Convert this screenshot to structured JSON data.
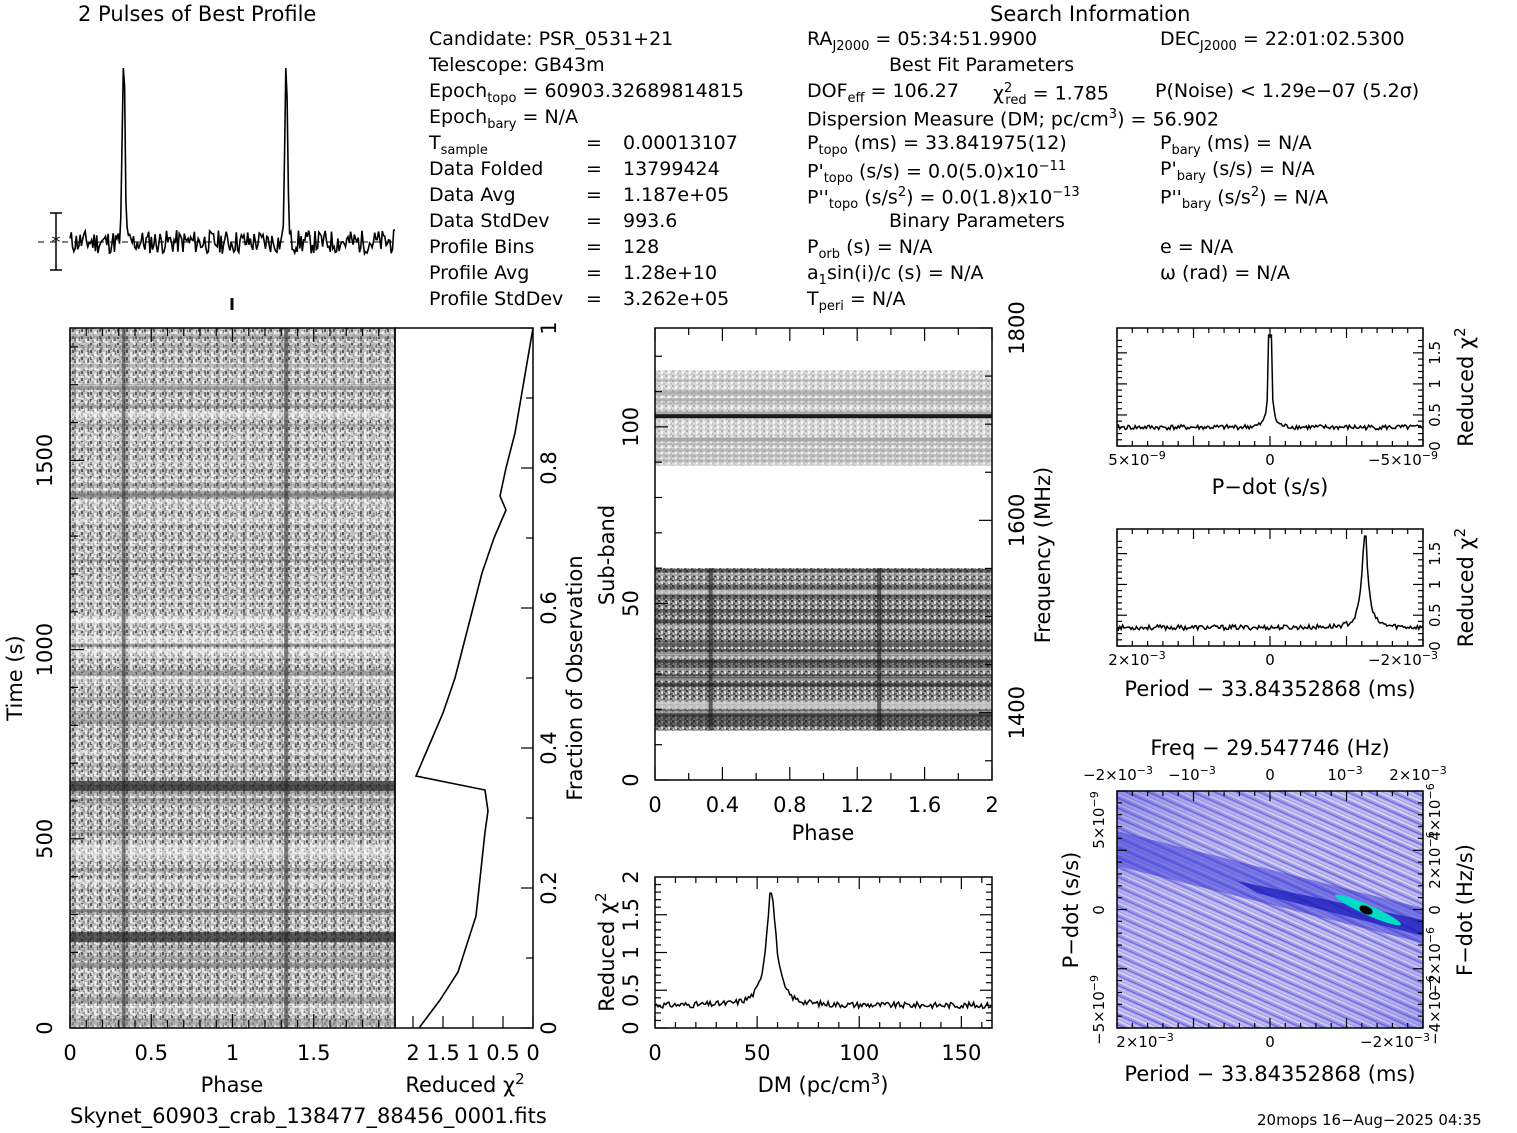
{
  "profile_title": "2 Pulses of Best Profile",
  "search_title": "Search Information",
  "info": {
    "candidate": "Candidate:  PSR_0531+21",
    "telescope": "Telescope:  GB43m",
    "epoch_topo": "Epoch",
    "epoch_topo_sub": "topo",
    "epoch_topo_val": " = 60903.32689814815",
    "epoch_bary": "Epoch",
    "epoch_bary_sub": "bary",
    "epoch_bary_val": " = N/A",
    "rows": [
      {
        "label": "T",
        "sub": "sample",
        "value": "0.00013107"
      },
      {
        "label": "Data Folded",
        "sub": "",
        "value": "13799424"
      },
      {
        "label": "Data Avg",
        "sub": "",
        "value": "1.187e+05"
      },
      {
        "label": "Data StdDev",
        "sub": "",
        "value": "993.6"
      },
      {
        "label": "Profile Bins",
        "sub": "",
        "value": "128"
      },
      {
        "label": "Profile Avg",
        "sub": "",
        "value": "1.28e+10"
      },
      {
        "label": "Profile StdDev",
        "sub": "",
        "value": "3.262e+05"
      }
    ],
    "eq": "=",
    "ra": "RA",
    "ra_sub": "J2000",
    "ra_val": " = 05:34:51.9900",
    "dec": "DEC",
    "dec_sub": "J2000",
    "dec_val": " = 22:01:02.5300",
    "best_fit_title": "Best Fit Parameters",
    "dof": "DOF",
    "dof_sub": "eff",
    "dof_val": " = 106.27",
    "chi": "χ",
    "chi_sup": "2",
    "chi_sub": "red",
    "chi_val": " = 1.785",
    "pnoise": "P(Noise) < 1.29e−07  (5.2σ)",
    "dm_line": "Dispersion Measure (DM; pc/cm",
    "dm_sup": "3",
    "dm_val": ") = 56.902",
    "ptopo": "P",
    "ptopo_sub": "topo",
    "ptopo_val": " (ms) =  33.841975(12)",
    "pbary": "P",
    "pbary_sub": "bary",
    "pbary_val": " (ms) = N/A",
    "pdtopo": "P'",
    "pdtopo_sub": "topo",
    "pdtopo_val": " (s/s) = 0.0(5.0)x10",
    "pdtopo_exp": "−11",
    "pdbary": "P'",
    "pdbary_sub": "bary",
    "pdbary_val": " (s/s) = N/A",
    "pddtopo": "P''",
    "pddtopo_sub": "topo",
    "pddtopo_val": " (s/s",
    "pddtopo_sup": "2",
    "pddtopo_val2": ") = 0.0(1.8)x10",
    "pddtopo_exp": "−13",
    "pddbary": "P''",
    "pddbary_sub": "bary",
    "pddbary_val": " (s/s",
    "pddbary_sup": "2",
    "pddbary_val2": ") = N/A",
    "binary_title": "Binary Parameters",
    "porb": "P",
    "porb_sub": "orb",
    "porb_val": " (s) = N/A",
    "ecc": "e = N/A",
    "a1": "a",
    "a1_sub": "1",
    "a1_val": "sin(i)/c (s) = N/A",
    "omega": "ω (rad) = N/A",
    "tperi": "T",
    "tperi_sub": "peri",
    "tperi_val": " = N/A"
  },
  "footer_file": "Skynet_60903_crab_138477_88456_0001.fits",
  "footer_stamp": "20mops 16−Aug−2025 04:35",
  "chart_data": [
    {
      "id": "profile",
      "type": "line",
      "title": "2 Pulses of Best Profile",
      "x_range": [
        0,
        2
      ],
      "peaks_at_phase": [
        0.33,
        1.33
      ],
      "peak_relative": 1.0,
      "baseline_relative": 0.13
    },
    {
      "id": "time-phase",
      "type": "heatmap",
      "xlabel": "Phase",
      "ylabel": "Time (s)",
      "xlim": [
        0,
        2
      ],
      "ylim": [
        0,
        1850
      ],
      "x_ticks": [
        "0",
        "0.5",
        "1",
        "1.5"
      ],
      "y_ticks": [
        "0",
        "500",
        "1000",
        "1500"
      ],
      "pulse_phases": [
        0.33,
        1.33
      ],
      "dark_rows_time": [
        240,
        640
      ]
    },
    {
      "id": "time-chi",
      "type": "line",
      "xlabel": "Reduced χ",
      "xlabel_sup": "2",
      "ylabel": "Fraction of Observation",
      "x_ticks": [
        "2",
        "1.5",
        "1",
        "0.5",
        "0"
      ],
      "y_ticks": [
        "0",
        "0.2",
        "0.4",
        "0.6",
        "0.8",
        "1"
      ],
      "xlim": [
        2.3,
        0
      ],
      "ylim": [
        0,
        1
      ],
      "fraction": [
        0.0,
        0.04,
        0.08,
        0.12,
        0.16,
        0.2,
        0.24,
        0.28,
        0.31,
        0.34,
        0.36,
        0.4,
        0.45,
        0.5,
        0.55,
        0.6,
        0.65,
        0.7,
        0.74,
        0.76,
        0.8,
        0.85,
        0.9,
        0.95,
        1.0
      ],
      "reduced_chi2": [
        1.9,
        1.55,
        1.25,
        1.1,
        0.95,
        0.9,
        0.85,
        0.8,
        0.75,
        0.8,
        1.95,
        1.75,
        1.5,
        1.3,
        1.15,
        1.0,
        0.85,
        0.65,
        0.45,
        0.55,
        0.45,
        0.3,
        0.2,
        0.1,
        0.0
      ]
    },
    {
      "id": "subband-phase",
      "type": "heatmap",
      "xlabel": "Phase",
      "ylabel": "Sub-band",
      "y2label": "Frequency (MHz)",
      "xlim": [
        0,
        2
      ],
      "ylim": [
        0,
        128
      ],
      "x_ticks": [
        "0",
        "0.4",
        "0.8",
        "1.2",
        "1.6",
        "2"
      ],
      "y_ticks": [
        "0",
        "50",
        "100"
      ],
      "y2_ticks": [
        "1400",
        "1600",
        "1800"
      ],
      "data_bands": [
        [
          14,
          60
        ],
        [
          89,
          116
        ]
      ],
      "dark_row_subband": 103,
      "pulse_phases": [
        0.33,
        1.33
      ]
    },
    {
      "id": "dm-chi",
      "type": "line",
      "xlabel": "DM (pc/cm",
      "xlabel_sup": "3",
      "xlabel_end": ")",
      "ylabel": "Reduced χ",
      "ylabel_sup": "2",
      "xlim": [
        0,
        165
      ],
      "ylim": [
        0,
        2
      ],
      "x_ticks": [
        "0",
        "50",
        "100",
        "150"
      ],
      "y_ticks": [
        "0",
        "0.5",
        "1",
        "1.5",
        "2"
      ],
      "peak_dm": 56.902,
      "peak_value": 1.785,
      "baseline": 0.3
    },
    {
      "id": "pdot-chi",
      "type": "line",
      "xlabel": "P−dot (s/s)",
      "ylabel": "Reduced χ",
      "ylabel_sup": "2",
      "x_ticks": [
        "5×10",
        "0",
        "−5×10"
      ],
      "x_ticks_exp": [
        "−9",
        "",
        "−9"
      ],
      "y_ticks": [
        "0",
        "0.5",
        "1",
        "1.5"
      ],
      "ylim": [
        0,
        1.9
      ],
      "peak_value": 1.785,
      "baseline": 0.3
    },
    {
      "id": "period-chi",
      "type": "line",
      "xlabel": "Period − 33.84352868 (ms)",
      "ylabel": "Reduced χ",
      "ylabel_sup": "2",
      "x_ticks": [
        "2×10",
        "0",
        "−2×10"
      ],
      "x_ticks_exp": [
        "−3",
        "",
        "−3"
      ],
      "y_ticks": [
        "0",
        "0.5",
        "1",
        "1.5"
      ],
      "ylim": [
        0,
        1.9
      ],
      "peak_value": 1.785,
      "baseline": 0.3
    },
    {
      "id": "period-pdot",
      "type": "heatmap",
      "title": "Freq − 29.547746 (Hz)",
      "xlabel": "Period − 33.84352868 (ms)",
      "ylabel": "P−dot (s/s)",
      "y2label": "F−dot (Hz/s)",
      "top_ticks": [
        "−2×10",
        "−10",
        "0",
        "10",
        "2×10"
      ],
      "top_ticks_exp": [
        "−3",
        "−3",
        "",
        "−3",
        "−3"
      ],
      "bottom_ticks": [
        "2×10",
        "0",
        "−2×10"
      ],
      "bottom_ticks_exp": [
        "−3",
        "",
        "−3"
      ],
      "left_ticks": [
        "5×10",
        "0",
        "−5×10"
      ],
      "left_ticks_exp": [
        "−9",
        "",
        "−9"
      ],
      "right_ticks": [
        "−4×10",
        "−2×10",
        "0",
        "2×10",
        "4×10"
      ],
      "right_ticks_exp": [
        "−6",
        "−6",
        "",
        "−6",
        "−6"
      ],
      "colors": {
        "low": "#eae4f4",
        "mid": "#3c3cd8",
        "high": "#00dcc8",
        "peak": "#000000"
      }
    }
  ]
}
